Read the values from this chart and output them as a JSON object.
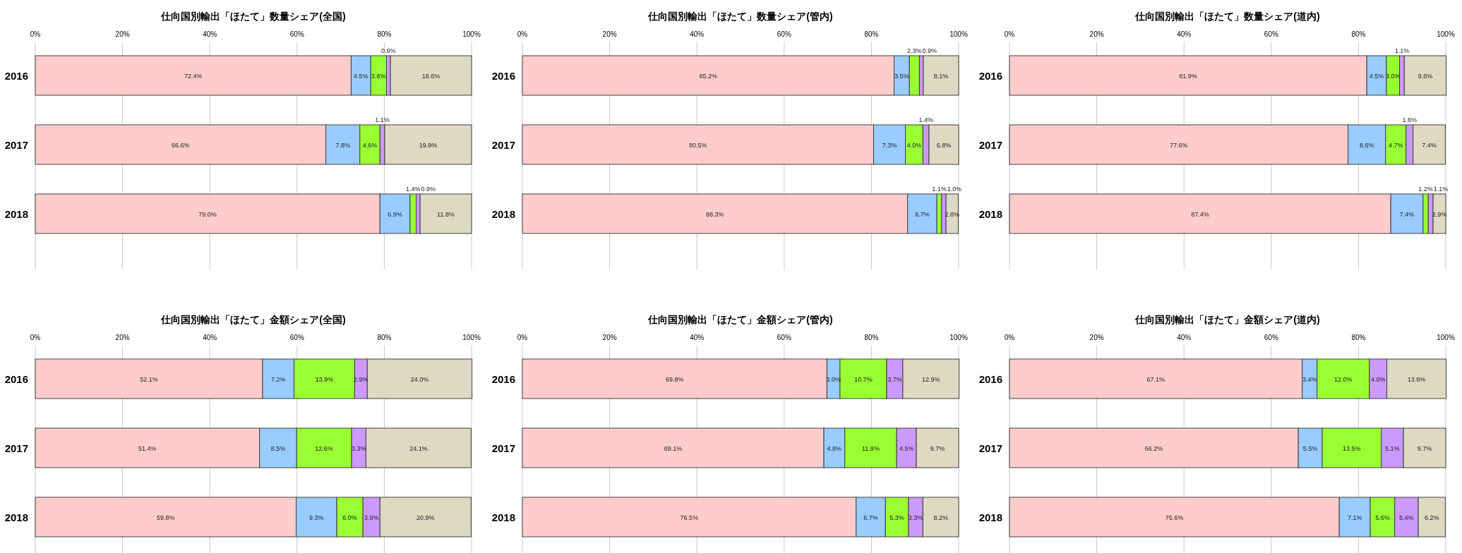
{
  "chart_data": [
    {
      "type": "bar",
      "title": "仕向国別輸出「ほたて」数量シェア(全国)",
      "orientation": "horizontal",
      "stacked": true,
      "categories": [
        "2016",
        "2017",
        "2018"
      ],
      "xlim": [
        0,
        100
      ],
      "xticks": [
        {
          "value": 0,
          "label": "0%"
        },
        {
          "value": 20,
          "label": "20%"
        },
        {
          "value": 40,
          "label": "40%"
        },
        {
          "value": 60,
          "label": "60%"
        },
        {
          "value": 80,
          "label": "80%"
        },
        {
          "value": 100,
          "label": "100%"
        }
      ],
      "grid": "x",
      "series": [
        {
          "color": "#ffcccc",
          "values": [
            72.4,
            66.6,
            79.0
          ],
          "value_labels": [
            "72.4%",
            "66.6%",
            "79.0%"
          ]
        },
        {
          "color": "#99ccff",
          "values": [
            4.5,
            7.8,
            6.9
          ],
          "value_labels": [
            "4.5%",
            "7.8%",
            "6.9%"
          ]
        },
        {
          "color": "#99ff33",
          "values": [
            3.6,
            4.6,
            1.4
          ],
          "value_labels": [
            "3.6%",
            "4.6%",
            "1.4%"
          ]
        },
        {
          "color": "#cc99ff",
          "values": [
            0.9,
            1.1,
            0.9
          ],
          "value_labels": [
            "0.9%",
            "1.1%",
            "0.9%"
          ]
        },
        {
          "color": "#ddd9c3",
          "values": [
            18.6,
            19.9,
            11.8
          ],
          "value_labels": [
            "18.6%",
            "19.9%",
            "11.8%"
          ]
        }
      ]
    },
    {
      "type": "bar",
      "title": "仕向国別輸出「ほたて」数量シェア(管内)",
      "orientation": "horizontal",
      "stacked": true,
      "categories": [
        "2016",
        "2017",
        "2018"
      ],
      "xlim": [
        0,
        100
      ],
      "xticks": [
        {
          "value": 0,
          "label": "0%"
        },
        {
          "value": 20,
          "label": "20%"
        },
        {
          "value": 40,
          "label": "40%"
        },
        {
          "value": 60,
          "label": "60%"
        },
        {
          "value": 80,
          "label": "80%"
        },
        {
          "value": 100,
          "label": "100%"
        }
      ],
      "grid": "x",
      "series": [
        {
          "color": "#ffcccc",
          "values": [
            85.2,
            80.5,
            88.3
          ],
          "value_labels": [
            "85.2%",
            "80.5%",
            "88.3%"
          ]
        },
        {
          "color": "#99ccff",
          "values": [
            3.5,
            7.3,
            6.7
          ],
          "value_labels": [
            "3.5%",
            "7.3%",
            "6.7%"
          ]
        },
        {
          "color": "#99ff33",
          "values": [
            2.3,
            4.0,
            1.1
          ],
          "value_labels": [
            "2.3%",
            "4.0%",
            "1.1%"
          ]
        },
        {
          "color": "#cc99ff",
          "values": [
            0.9,
            1.4,
            1.0
          ],
          "value_labels": [
            "0.9%",
            "1.4%",
            "1.0%"
          ]
        },
        {
          "color": "#ddd9c3",
          "values": [
            8.1,
            6.8,
            2.8
          ],
          "value_labels": [
            "8.1%",
            "6.8%",
            "2.8%"
          ]
        }
      ]
    },
    {
      "type": "bar",
      "title": "仕向国別輸出「ほたて」数量シェア(道内)",
      "orientation": "horizontal",
      "stacked": true,
      "categories": [
        "2016",
        "2017",
        "2018"
      ],
      "xlim": [
        0,
        100
      ],
      "xticks": [
        {
          "value": 0,
          "label": "0%"
        },
        {
          "value": 20,
          "label": "20%"
        },
        {
          "value": 40,
          "label": "40%"
        },
        {
          "value": 60,
          "label": "60%"
        },
        {
          "value": 80,
          "label": "80%"
        },
        {
          "value": 100,
          "label": "100%"
        }
      ],
      "grid": "x",
      "series": [
        {
          "color": "#ffcccc",
          "values": [
            81.9,
            77.6,
            87.4
          ],
          "value_labels": [
            "81.9%",
            "77.6%",
            "87.4%"
          ]
        },
        {
          "color": "#99ccff",
          "values": [
            4.5,
            8.6,
            7.4
          ],
          "value_labels": [
            "4.5%",
            "8.6%",
            "7.4%"
          ]
        },
        {
          "color": "#99ff33",
          "values": [
            3.0,
            4.7,
            1.2
          ],
          "value_labels": [
            "3.0%",
            "4.7%",
            "1.2%"
          ]
        },
        {
          "color": "#cc99ff",
          "values": [
            1.1,
            1.6,
            1.1
          ],
          "value_labels": [
            "1.1%",
            "1.6%",
            "1.1%"
          ]
        },
        {
          "color": "#ddd9c3",
          "values": [
            9.6,
            7.4,
            2.9
          ],
          "value_labels": [
            "9.6%",
            "7.4%",
            "2.9%"
          ]
        }
      ]
    },
    {
      "type": "bar",
      "title": "仕向国別輸出「ほたて」金額シェア(全国)",
      "orientation": "horizontal",
      "stacked": true,
      "categories": [
        "2016",
        "2017",
        "2018"
      ],
      "xlim": [
        0,
        100
      ],
      "xticks": [
        {
          "value": 0,
          "label": "0%"
        },
        {
          "value": 20,
          "label": "20%"
        },
        {
          "value": 40,
          "label": "40%"
        },
        {
          "value": 60,
          "label": "60%"
        },
        {
          "value": 80,
          "label": "80%"
        },
        {
          "value": 100,
          "label": "100%"
        }
      ],
      "grid": "x",
      "series": [
        {
          "color": "#ffcccc",
          "values": [
            52.1,
            51.4,
            59.8
          ],
          "value_labels": [
            "52.1%",
            "51.4%",
            "59.8%"
          ]
        },
        {
          "color": "#99ccff",
          "values": [
            7.2,
            8.5,
            9.3
          ],
          "value_labels": [
            "7.2%",
            "8.5%",
            "9.3%"
          ]
        },
        {
          "color": "#99ff33",
          "values": [
            13.9,
            12.6,
            6.0
          ],
          "value_labels": [
            "13.9%",
            "12.6%",
            "6.0%"
          ]
        },
        {
          "color": "#cc99ff",
          "values": [
            2.9,
            3.3,
            3.9
          ],
          "value_labels": [
            "2.9%",
            "3.3%",
            "3.9%"
          ]
        },
        {
          "color": "#ddd9c3",
          "values": [
            24.0,
            24.1,
            20.9
          ],
          "value_labels": [
            "24.0%",
            "24.1%",
            "20.9%"
          ]
        }
      ]
    },
    {
      "type": "bar",
      "title": "仕向国別輸出「ほたて」金額シェア(管内)",
      "orientation": "horizontal",
      "stacked": true,
      "categories": [
        "2016",
        "2017",
        "2018"
      ],
      "xlim": [
        0,
        100
      ],
      "xticks": [
        {
          "value": 0,
          "label": "0%"
        },
        {
          "value": 20,
          "label": "20%"
        },
        {
          "value": 40,
          "label": "40%"
        },
        {
          "value": 60,
          "label": "60%"
        },
        {
          "value": 80,
          "label": "80%"
        },
        {
          "value": 100,
          "label": "100%"
        }
      ],
      "grid": "x",
      "series": [
        {
          "color": "#ffcccc",
          "values": [
            69.8,
            69.1,
            76.5
          ],
          "value_labels": [
            "69.8%",
            "69.1%",
            "76.5%"
          ]
        },
        {
          "color": "#99ccff",
          "values": [
            3.0,
            4.8,
            6.7
          ],
          "value_labels": [
            "3.0%",
            "4.8%",
            "6.7%"
          ]
        },
        {
          "color": "#99ff33",
          "values": [
            10.7,
            11.9,
            5.3
          ],
          "value_labels": [
            "10.7%",
            "11.9%",
            "5.3%"
          ]
        },
        {
          "color": "#cc99ff",
          "values": [
            3.7,
            4.5,
            3.3
          ],
          "value_labels": [
            "3.7%",
            "4.5%",
            "3.3%"
          ]
        },
        {
          "color": "#ddd9c3",
          "values": [
            12.9,
            9.7,
            8.2
          ],
          "value_labels": [
            "12.9%",
            "9.7%",
            "8.2%"
          ]
        }
      ]
    },
    {
      "type": "bar",
      "title": "仕向国別輸出「ほたて」金額シェア(道内)",
      "orientation": "horizontal",
      "stacked": true,
      "categories": [
        "2016",
        "2017",
        "2018"
      ],
      "xlim": [
        0,
        100
      ],
      "xticks": [
        {
          "value": 0,
          "label": "0%"
        },
        {
          "value": 20,
          "label": "20%"
        },
        {
          "value": 40,
          "label": "40%"
        },
        {
          "value": 60,
          "label": "60%"
        },
        {
          "value": 80,
          "label": "80%"
        },
        {
          "value": 100,
          "label": "100%"
        }
      ],
      "grid": "x",
      "series": [
        {
          "color": "#ffcccc",
          "values": [
            67.1,
            66.2,
            75.6
          ],
          "value_labels": [
            "67.1%",
            "66.2%",
            "75.6%"
          ]
        },
        {
          "color": "#99ccff",
          "values": [
            3.4,
            5.5,
            7.1
          ],
          "value_labels": [
            "3.4%",
            "5.5%",
            "7.1%"
          ]
        },
        {
          "color": "#99ff33",
          "values": [
            12.0,
            13.5,
            5.6
          ],
          "value_labels": [
            "12.0%",
            "13.5%",
            "5.6%"
          ]
        },
        {
          "color": "#cc99ff",
          "values": [
            4.0,
            5.1,
            5.4
          ],
          "value_labels": [
            "4.0%",
            "5.1%",
            "5.4%"
          ]
        },
        {
          "color": "#ddd9c3",
          "values": [
            13.6,
            9.7,
            6.2
          ],
          "value_labels": [
            "13.6%",
            "9.7%",
            "6.2%"
          ]
        }
      ]
    }
  ]
}
